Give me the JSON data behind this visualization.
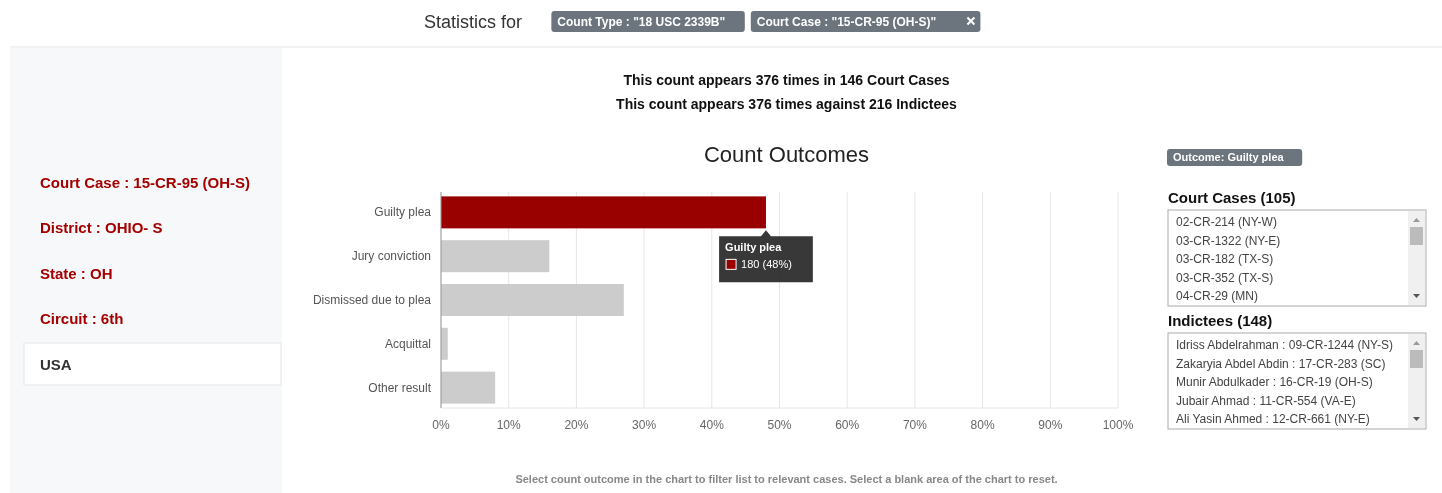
{
  "chart_data": [
    {
      "type": "other",
      "title": "Statistics for",
      "annotations": [
        "Count Type : \"18 USC 2339B\"",
        "Court Case : \"15-CR-95 (OH-S)\""
      ]
    },
    {
      "type": "other",
      "annotations": [
        "Court Case : 15-CR-95 (OH-S)",
        "District : OHIO- S",
        "State : OH",
        "Circuit : 6th",
        "USA"
      ]
    },
    {
      "type": "bar",
      "orientation": "horizontal",
      "title": "Count Outcomes",
      "categories": [
        "Guilty plea",
        "Jury conviction",
        "Dismissed due to plea",
        "Acquittal",
        "Other result"
      ],
      "values": [
        48,
        16,
        27,
        1,
        8
      ],
      "colors": [
        "#990000",
        "#cccccc",
        "#cccccc",
        "#cccccc",
        "#cccccc"
      ],
      "xlim": [
        0,
        100
      ],
      "xticks": [
        {
          "value": 0,
          "label": "0%"
        },
        {
          "value": 10,
          "label": "10%"
        },
        {
          "value": 20,
          "label": "20%"
        },
        {
          "value": 30,
          "label": "30%"
        },
        {
          "value": 40,
          "label": "40%"
        },
        {
          "value": 50,
          "label": "50%"
        },
        {
          "value": 60,
          "label": "60%"
        },
        {
          "value": 70,
          "label": "70%"
        },
        {
          "value": 80,
          "label": "80%"
        },
        {
          "value": 90,
          "label": "90%"
        },
        {
          "value": 100,
          "label": "100%"
        }
      ],
      "grid": "x",
      "annotations": [
        "This count appears 376 times in 146 Court Cases",
        "This count appears 376 times against 216 Indictees",
        {
          "text": "Guilty plea",
          "x": 48,
          "y": "Guilty plea"
        },
        {
          "text": "180 (48%)",
          "x": 48,
          "y": "Guilty plea"
        },
        "Select count outcome in the chart to filter list to relevant cases. Select a blank area of the chart to reset."
      ]
    },
    {
      "type": "other",
      "title": "Outcome: Guilty plea"
    },
    {
      "type": "other",
      "title": "Court Cases (105)",
      "annotations": [
        "02-CR-214 (NY-W)",
        "03-CR-1322 (NY-E)",
        "03-CR-182 (TX-S)",
        "03-CR-352 (TX-S)",
        "04-CR-29 (MN)"
      ]
    },
    {
      "type": "other",
      "title": "Indictees (148)",
      "annotations": [
        "Idriss Abdelrahman : 09-CR-1244 (NY-S)",
        "Zakaryia Abdel Abdin : 17-CR-283 (SC)",
        "Munir Abdulkader : 16-CR-19 (OH-S)",
        "Jubair Ahmad : 11-CR-554 (VA-E)",
        "Ali Yasin Ahmed : 12-CR-661 (NY-E)"
      ]
    }
  ]
}
